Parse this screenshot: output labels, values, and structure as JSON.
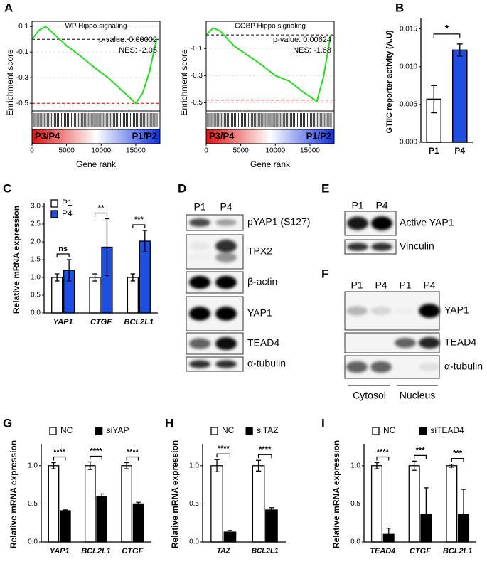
{
  "panel_labels": [
    "A",
    "B",
    "C",
    "D",
    "E",
    "F",
    "G",
    "H",
    "I"
  ],
  "chart_data": [
    {
      "type": "line",
      "title": "WP Hippo signaling",
      "ylabel": "Enrichment score",
      "xlabel": "Gene rank",
      "x": [
        0,
        1000,
        2000,
        3000,
        5000,
        7000,
        9000,
        11000,
        13000,
        15000,
        16000,
        17000,
        18000
      ],
      "series": [
        {
          "color": "#22dd22",
          "values": [
            0,
            0.07,
            0.1,
            0.05,
            -0.05,
            -0.13,
            -0.22,
            -0.3,
            -0.4,
            -0.5,
            -0.42,
            -0.25,
            0
          ]
        }
      ],
      "ref_lines": [
        {
          "value": 0,
          "color": "#000000"
        },
        {
          "value": -0.5,
          "color": "#e00000"
        }
      ],
      "annotations": [
        "p-value: 0.00002",
        "NES: -2.05"
      ],
      "gradient_labels": [
        "P3/P4",
        "P1/P2"
      ],
      "xlim": [
        0,
        18500
      ],
      "xticks": [
        0,
        5000,
        10000,
        15000
      ],
      "ylim": [
        -0.56,
        0.14
      ],
      "yticks": [
        0.1,
        -0.1,
        -0.3,
        -0.5
      ],
      "grid": true
    },
    {
      "type": "line",
      "title": "GOBP Hippo signaling",
      "ylabel": "Enrichment score",
      "xlabel": "Gene rank",
      "x": [
        0,
        1000,
        2000,
        4000,
        6000,
        8000,
        10000,
        12000,
        14000,
        16000,
        17000,
        18000
      ],
      "series": [
        {
          "color": "#22dd22",
          "values": [
            0,
            0.05,
            0.03,
            -0.08,
            -0.15,
            -0.22,
            -0.3,
            -0.34,
            -0.42,
            -0.49,
            -0.3,
            0
          ]
        }
      ],
      "ref_lines": [
        {
          "value": 0,
          "color": "#000000"
        },
        {
          "value": -0.48,
          "color": "#e00000"
        }
      ],
      "annotations": [
        "p-value: 0.00624",
        "NES: -1.68"
      ],
      "gradient_labels": [
        "P3/P4",
        "P1/P2"
      ],
      "xlim": [
        0,
        18500
      ],
      "xticks": [
        0,
        5000,
        10000,
        15000
      ],
      "ylim": [
        -0.56,
        0.1
      ],
      "yticks": [
        -0.1,
        -0.3,
        -0.5
      ],
      "grid": true
    },
    {
      "type": "bar",
      "ylabel": "GTIIC reporter activity (A.U)",
      "categories": [
        "P1",
        "P4"
      ],
      "values": [
        0.0057,
        0.0122
      ],
      "errors": [
        0.0018,
        0.0008
      ],
      "colors": [
        "#ffffff",
        "#1f4fe0"
      ],
      "significance": "*",
      "ylim": [
        0,
        0.016
      ],
      "yticks": [
        {
          "value": 0,
          "label": "0.000"
        },
        {
          "value": 0.005,
          "label": "0.005"
        },
        {
          "value": 0.01,
          "label": "0.010"
        },
        {
          "value": 0.015,
          "label": "0.015"
        }
      ]
    },
    {
      "type": "bar",
      "ylabel": "Relative mRNA expression",
      "categories": [
        "YAP1",
        "CTGF",
        "BCL2L1"
      ],
      "series": [
        {
          "name": "P1",
          "color": "#ffffff",
          "values": [
            1,
            1,
            1
          ],
          "errors": [
            0.1,
            0.1,
            0.1
          ]
        },
        {
          "name": "P4",
          "color": "#1f4fe0",
          "values": [
            1.2,
            1.85,
            2.02
          ],
          "errors": [
            0.3,
            0.8,
            0.3
          ]
        }
      ],
      "significance": [
        "ns",
        "**",
        "***"
      ],
      "legend": "top-left",
      "ylim": [
        0,
        3
      ],
      "yticks": [
        {
          "value": 0,
          "label": "0.0"
        },
        0.5,
        {
          "value": 1,
          "label": "1.0"
        },
        1.5,
        {
          "value": 2,
          "label": "2.0"
        },
        2.5,
        {
          "value": 3,
          "label": "3.0"
        }
      ]
    },
    {
      "type": "bar",
      "ylabel": "Relative mRNA expression",
      "categories": [
        "YAP1",
        "BCL2L1",
        "CTGF"
      ],
      "series": [
        {
          "name": "NC",
          "color": "#ffffff",
          "values": [
            1,
            1,
            1
          ],
          "errors": [
            0.04,
            0.05,
            0.04
          ]
        },
        {
          "name": "siYAP",
          "color": "#000000",
          "values": [
            0.41,
            0.6,
            0.5
          ],
          "errors": [
            0.01,
            0.03,
            0.02
          ]
        }
      ],
      "significance": [
        "****",
        "****",
        "****"
      ],
      "legend": "top",
      "ylim": [
        0,
        1.25
      ],
      "yticks": [
        {
          "value": 0,
          "label": "0.0"
        },
        0.5,
        {
          "value": 1,
          "label": "1.0"
        }
      ]
    },
    {
      "type": "bar",
      "ylabel": "Relative mRNA expression",
      "categories": [
        "TAZ",
        "BCL2L1"
      ],
      "series": [
        {
          "name": "NC",
          "color": "#ffffff",
          "values": [
            1,
            1
          ],
          "errors": [
            0.08,
            0.07
          ]
        },
        {
          "name": "siTAZ",
          "color": "#000000",
          "values": [
            0.13,
            0.42
          ],
          "errors": [
            0.02,
            0.03
          ]
        }
      ],
      "significance": [
        "****",
        "****"
      ],
      "legend": "top",
      "ylim": [
        0,
        1.25
      ],
      "yticks": [
        {
          "value": 0,
          "label": "0.0"
        },
        0.5,
        {
          "value": 1,
          "label": "1.0"
        }
      ]
    },
    {
      "type": "bar",
      "ylabel": "Relative mRNA expression",
      "categories": [
        "TEAD4",
        "CTGF",
        "BCL2L1"
      ],
      "series": [
        {
          "name": "NC",
          "color": "#ffffff",
          "values": [
            1,
            1,
            1
          ],
          "errors": [
            0.04,
            0.06,
            0.02
          ]
        },
        {
          "name": "siTEAD4",
          "color": "#000000",
          "values": [
            0.1,
            0.36,
            0.36
          ],
          "errors": [
            0.08,
            0.35,
            0.33
          ]
        }
      ],
      "significance": [
        "****",
        "***",
        "***"
      ],
      "legend": "top",
      "ylim": [
        0,
        1.25
      ],
      "yticks": [
        {
          "value": 0,
          "label": "0.0"
        },
        0.5,
        {
          "value": 1,
          "label": "1.0"
        }
      ]
    }
  ],
  "blots": [
    {
      "lanes": [
        "P1",
        "P4"
      ],
      "rows": [
        "pYAP1 (S127)",
        "TPX2",
        "β-actin",
        "YAP1",
        "TEAD4",
        "α-tubulin"
      ]
    },
    {
      "lanes": [
        "P1",
        "P4"
      ],
      "rows": [
        "Active YAP1",
        "Vinculin"
      ]
    },
    {
      "lanes": [
        "P1",
        "P4",
        "P1",
        "P4"
      ],
      "rows": [
        "YAP1",
        "TEAD4",
        "α-tubulin"
      ],
      "fractions": [
        "Cytosol",
        "Nucleus"
      ]
    }
  ]
}
